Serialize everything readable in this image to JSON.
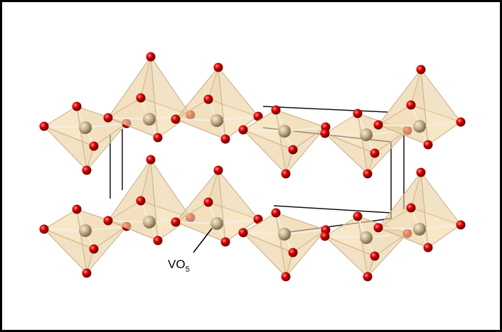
{
  "label": {
    "main": "VO",
    "subscript": "5"
  }
}
